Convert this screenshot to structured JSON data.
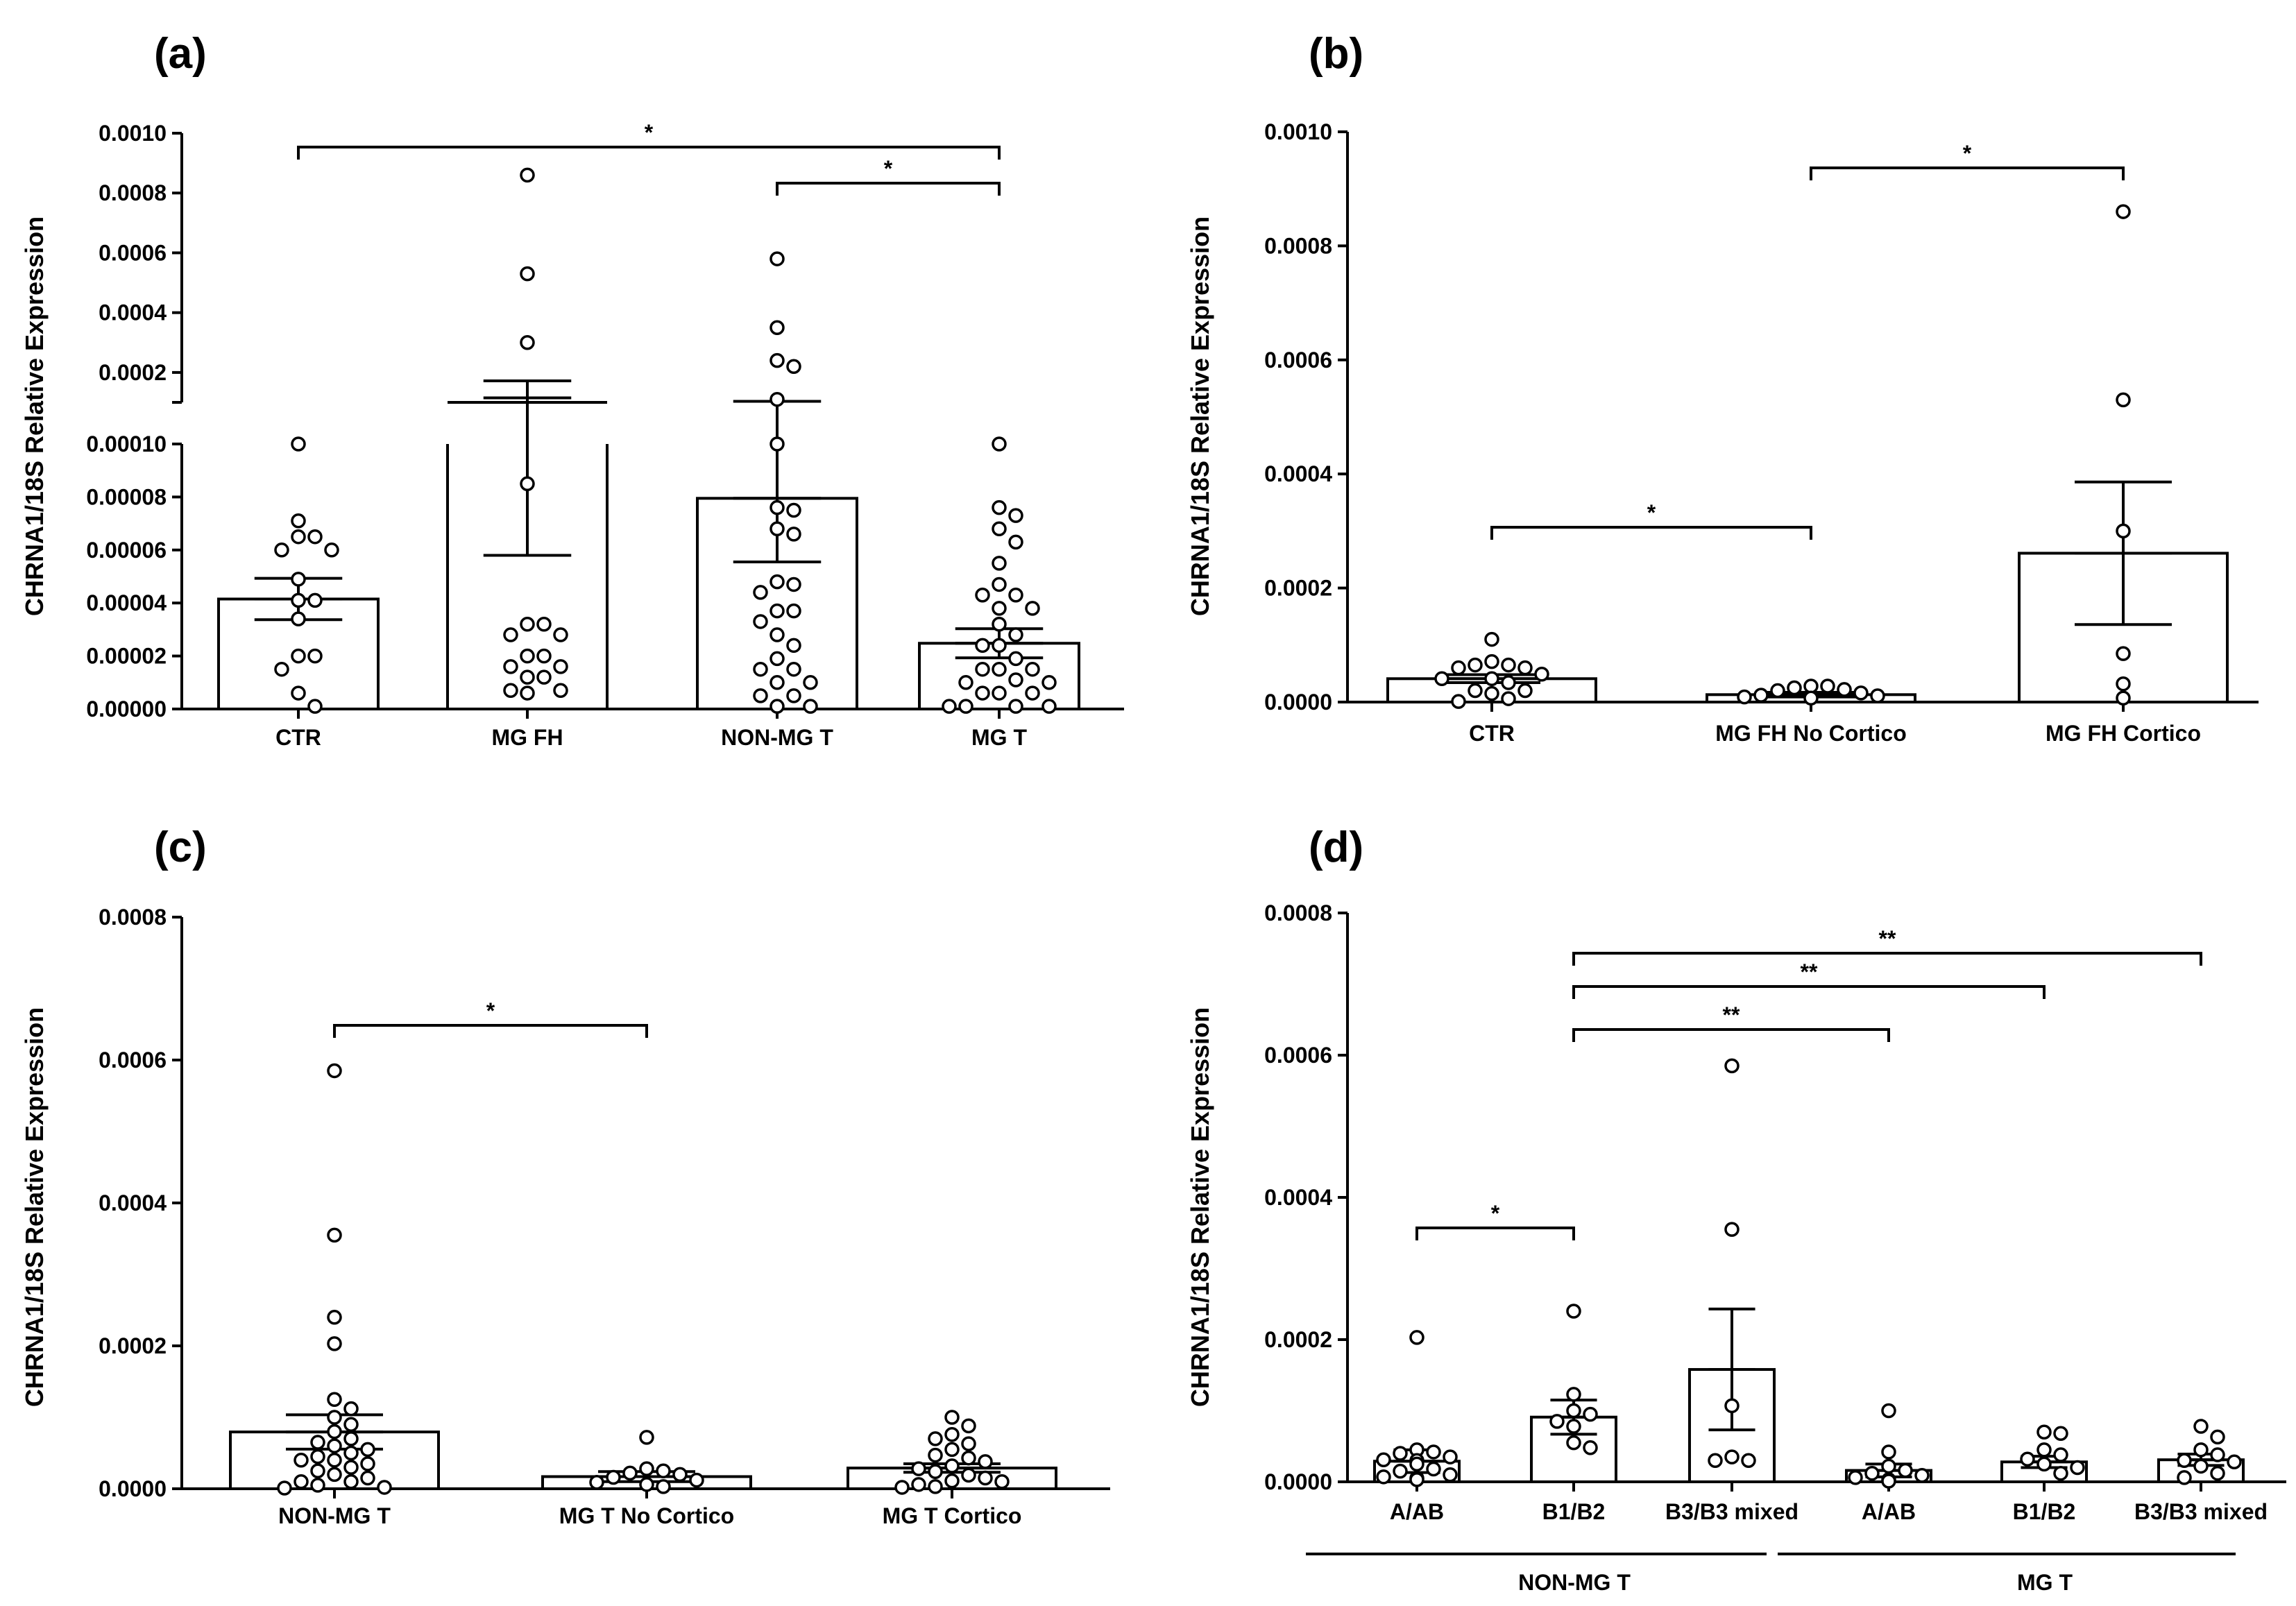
{
  "figure_title": "CHRNA1/18S relative expression panels",
  "chart_data": [
    {
      "type": "bar",
      "panel_label": "(a)",
      "ylabel": "CHRNA1/18S Relative Expression",
      "axis_break": true,
      "ylim_lower": [
        0,
        0.0001
      ],
      "ylim_upper": [
        0.0001,
        0.001
      ],
      "yticks_lower": [
        "0.00000",
        "0.00002",
        "0.00004",
        "0.00006",
        "0.00008",
        "0.00010"
      ],
      "yticks_upper": [
        "0.0002",
        "0.0004",
        "0.0006",
        "0.0008",
        "0.0010"
      ],
      "categories": [
        "CTR",
        "MG FH",
        "NON-MG T",
        "MG T"
      ],
      "values": [
        4.15e-05,
        0.000115,
        7.95e-05,
        2.48e-05
      ],
      "sem": [
        7.8e-06,
        5.7e-05,
        2.4e-05,
        5.5e-06
      ],
      "points": [
        [
          0.0001,
          7.1e-05,
          6.5e-05,
          6.5e-05,
          6e-05,
          6e-05,
          4.9e-05,
          4.1e-05,
          4.1e-05,
          3.4e-05,
          2e-05,
          2e-05,
          1.5e-05,
          6e-06,
          1e-06
        ],
        [
          0.00086,
          0.00053,
          0.0003,
          8.5e-05,
          3.2e-05,
          3.2e-05,
          2.8e-05,
          2.8e-05,
          2e-05,
          2e-05,
          1.6e-05,
          1.6e-05,
          1.2e-05,
          1.2e-05,
          7e-06,
          7e-06,
          6e-06
        ],
        [
          0.00058,
          0.00035,
          0.00024,
          0.00022,
          0.00011,
          0.0001,
          7.6e-05,
          7.5e-05,
          6.8e-05,
          6.6e-05,
          4.8e-05,
          4.7e-05,
          4.4e-05,
          3.7e-05,
          3.7e-05,
          3.3e-05,
          2.8e-05,
          2.4e-05,
          1.9e-05,
          1.5e-05,
          1.5e-05,
          1e-05,
          1e-05,
          5e-06,
          5e-06,
          1e-06,
          1e-06
        ],
        [
          0.0001,
          7.6e-05,
          7.3e-05,
          6.8e-05,
          6.3e-05,
          5.5e-05,
          4.7e-05,
          4.3e-05,
          4.3e-05,
          3.8e-05,
          3.8e-05,
          3.2e-05,
          2.8e-05,
          2.4e-05,
          2.4e-05,
          1.9e-05,
          1.5e-05,
          1.5e-05,
          1.5e-05,
          1.1e-05,
          1e-05,
          1e-05,
          6e-06,
          6e-06,
          6e-06,
          1e-06,
          1e-06,
          1e-06,
          1e-06
        ]
      ],
      "significance": [
        {
          "from": 0,
          "to": 3,
          "label": "*"
        },
        {
          "from": 2,
          "to": 3,
          "label": "*"
        }
      ]
    },
    {
      "type": "bar",
      "panel_label": "(b)",
      "ylabel": "CHRNA1/18S Relative Expression",
      "ylim": [
        0,
        0.001
      ],
      "yticks": [
        "0.0000",
        "0.0002",
        "0.0004",
        "0.0006",
        "0.0008",
        "0.0010"
      ],
      "categories": [
        "CTR",
        "MG FH No Cortico",
        "MG FH Cortico"
      ],
      "values": [
        4.1e-05,
        1.3e-05,
        0.000261
      ],
      "sem": [
        7e-06,
        4e-06,
        0.000125
      ],
      "points": [
        [
          0.00011,
          7.1e-05,
          6.5e-05,
          6.5e-05,
          6e-05,
          6e-05,
          4.9e-05,
          4.1e-05,
          4.1e-05,
          3.4e-05,
          2e-05,
          2e-05,
          1.5e-05,
          6e-06,
          1e-06
        ],
        [
          2.8e-05,
          2.8e-05,
          2.5e-05,
          2.2e-05,
          2e-05,
          1.6e-05,
          1.2e-05,
          1.1e-05,
          9e-06,
          7e-06
        ],
        [
          0.00086,
          0.00053,
          0.0003,
          8.5e-05,
          3.2e-05,
          7e-06
        ]
      ],
      "significance": [
        {
          "from": 0,
          "to": 1,
          "label": "*"
        },
        {
          "from": 1,
          "to": 2,
          "label": "*"
        }
      ]
    },
    {
      "type": "bar",
      "panel_label": "(c)",
      "ylabel": "CHRNA1/18S Relative Expression",
      "ylim": [
        0,
        0.0008
      ],
      "yticks": [
        "0.0000",
        "0.0002",
        "0.0004",
        "0.0006",
        "0.0008"
      ],
      "categories": [
        "NON-MG T",
        "MG T No Cortico",
        "MG T Cortico"
      ],
      "values": [
        7.95e-05,
        1.7e-05,
        2.9e-05
      ],
      "sem": [
        2.4e-05,
        7e-06,
        6e-06
      ],
      "points": [
        [
          0.000585,
          0.000355,
          0.00024,
          0.000203,
          0.000125,
          0.000112,
          0.0001,
          9e-05,
          8e-05,
          7e-05,
          6.5e-05,
          6e-05,
          5.5e-05,
          5e-05,
          4.5e-05,
          4e-05,
          4e-05,
          3.5e-05,
          3e-05,
          2.5e-05,
          2e-05,
          1.5e-05,
          1e-05,
          1e-05,
          5e-06,
          2e-06,
          1e-06
        ],
        [
          7.2e-05,
          2.8e-05,
          2.5e-05,
          2.2e-05,
          2e-05,
          1.6e-05,
          1.2e-05,
          9e-06,
          6e-06,
          3e-06
        ],
        [
          0.0001,
          8.8e-05,
          7.6e-05,
          7e-05,
          6.3e-05,
          5.5e-05,
          4.7e-05,
          4.3e-05,
          3.8e-05,
          3.2e-05,
          2.8e-05,
          2.4e-05,
          1.9e-05,
          1.5e-05,
          1.1e-05,
          1e-05,
          6e-06,
          3e-06,
          2e-06
        ]
      ],
      "significance": [
        {
          "from": 0,
          "to": 1,
          "label": "*"
        }
      ]
    },
    {
      "type": "bar",
      "panel_label": "(d)",
      "ylabel": "CHRNA1/18S Relative Expression",
      "ylim": [
        0,
        0.0008
      ],
      "yticks": [
        "0.0000",
        "0.0002",
        "0.0004",
        "0.0006",
        "0.0008"
      ],
      "categories": [
        "A/AB",
        "B1/B2",
        "B3/B3 mixed",
        "A/AB",
        "B1/B2",
        "B3/B3 mixed"
      ],
      "group_labels": [
        {
          "label": "NON-MG T",
          "from": 0,
          "to": 2
        },
        {
          "label": "MG T",
          "from": 3,
          "to": 5
        }
      ],
      "values": [
        2.9e-05,
        9.1e-05,
        0.000158,
        1.6e-05,
        2.8e-05,
        3.1e-05
      ],
      "sem": [
        1.6e-05,
        2.4e-05,
        8.5e-05,
        9e-06,
        8e-06,
        8e-06
      ],
      "points": [
        [
          0.000203,
          4.5e-05,
          4.2e-05,
          4e-05,
          3.5e-05,
          3.1e-05,
          3e-05,
          2.5e-05,
          1.8e-05,
          1.5e-05,
          1e-05,
          7e-06,
          5e-06,
          3e-06
        ],
        [
          0.00024,
          0.000123,
          0.0001,
          9.5e-05,
          8.5e-05,
          7.8e-05,
          5.5e-05,
          4.8e-05
        ],
        [
          0.000585,
          0.000355,
          0.000107,
          3.5e-05,
          3e-05,
          3e-05
        ],
        [
          0.0001,
          4.2e-05,
          2.2e-05,
          1.6e-05,
          1.2e-05,
          9e-06,
          6e-06,
          3e-06,
          1e-06
        ],
        [
          7e-05,
          6.8e-05,
          4.5e-05,
          3.8e-05,
          3.2e-05,
          2.5e-05,
          2e-05,
          1.2e-05
        ],
        [
          7.8e-05,
          6.3e-05,
          4.5e-05,
          3.8e-05,
          3e-05,
          2.8e-05,
          2.2e-05,
          1.2e-05,
          6e-06
        ]
      ],
      "significance": [
        {
          "from": 0,
          "to": 1,
          "label": "*"
        },
        {
          "from": 1,
          "to": 3,
          "label": "**"
        },
        {
          "from": 1,
          "to": 4,
          "label": "**"
        },
        {
          "from": 1,
          "to": 5,
          "label": "**"
        }
      ]
    }
  ]
}
